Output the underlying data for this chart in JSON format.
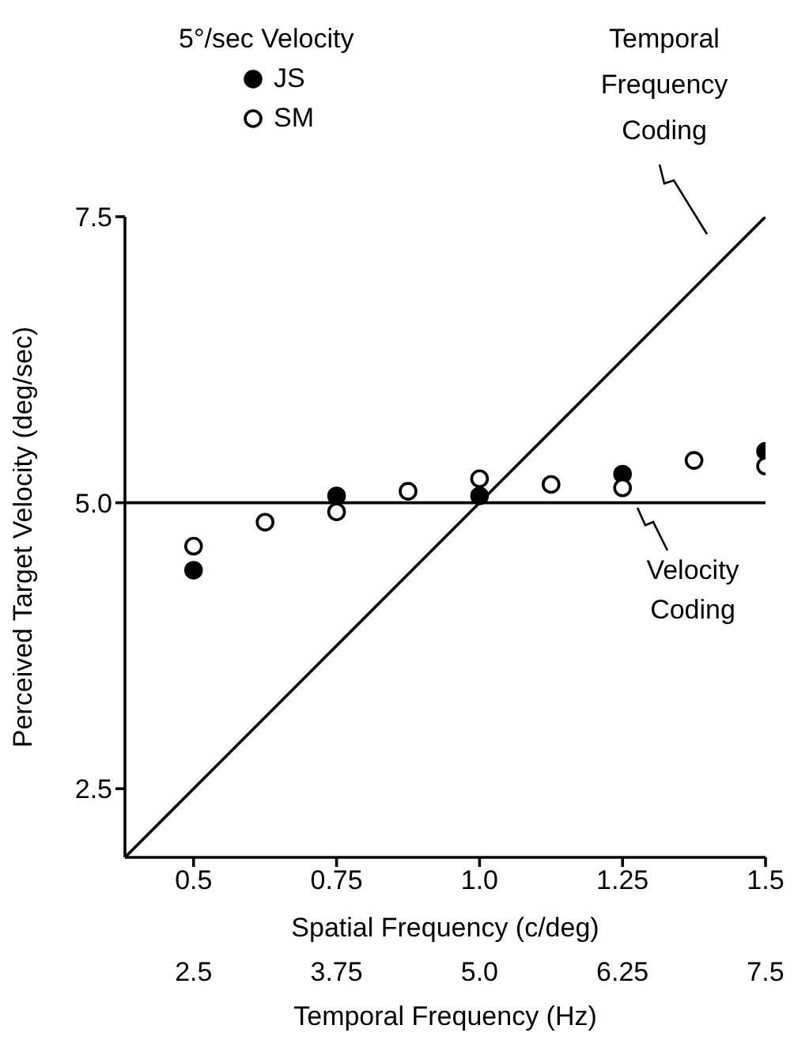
{
  "chart_data": {
    "type": "scatter",
    "xlabel": "Spatial Frequency (c/deg)",
    "ylabel": "Perceived Target Velocity (deg/sec)",
    "x2label": "Temporal Frequency (Hz)",
    "legend_title": "5°/sec Velocity",
    "legend": "top left",
    "marker": "circle",
    "grid": false,
    "xlim": [
      0.38,
      1.5
    ],
    "xticks": [
      0.5,
      0.75,
      {
        "value": 1,
        "label": "1.0"
      },
      1.25,
      1.5
    ],
    "x2lim": [
      1.9,
      7.5
    ],
    "x2ticks": [
      2.5,
      3.75,
      {
        "value": 5,
        "label": "5.0"
      },
      6.25,
      7.5
    ],
    "ylim": [
      1.9,
      7.5
    ],
    "yticks": [
      2.5,
      {
        "value": 5,
        "label": "5.0"
      },
      7.5
    ],
    "ref_lines": [
      {
        "axis": "y",
        "value": 5,
        "label": "Velocity Coding",
        "color": "#000000"
      }
    ],
    "series": [
      {
        "name": "JS",
        "type": "scatter",
        "color": "#000000",
        "x": [
          0.5,
          0.75,
          1.0,
          1.25,
          1.5
        ],
        "values": [
          4.41,
          5.06,
          5.06,
          5.25,
          5.45
        ]
      },
      {
        "name": "SM",
        "type": "scatter",
        "color": "#ffffff",
        "x": [
          0.5,
          0.625,
          0.75,
          0.875,
          1.0,
          1.125,
          1.25,
          1.375,
          1.5
        ],
        "values": [
          4.62,
          4.83,
          4.92,
          5.1,
          5.21,
          5.16,
          5.13,
          5.37,
          5.32
        ]
      },
      {
        "name": "Temporal Frequency Coding",
        "type": "line",
        "color": "#000000",
        "marker": "none",
        "line_style": "solid",
        "x": [
          0.38,
          1.5
        ],
        "values": [
          1.9,
          7.5
        ]
      }
    ]
  }
}
